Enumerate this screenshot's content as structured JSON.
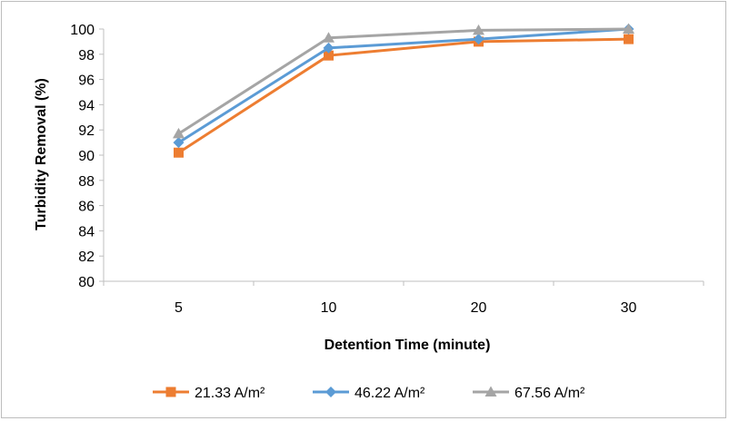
{
  "chart_data": {
    "type": "line",
    "categories": [
      "5",
      "10",
      "20",
      "30"
    ],
    "series": [
      {
        "name": "21.33 A/m²",
        "values": [
          90.2,
          97.9,
          99.0,
          99.2
        ],
        "color": "#ED7D31",
        "marker": "square"
      },
      {
        "name": "46.22 A/m²",
        "values": [
          91.0,
          98.5,
          99.2,
          100.0
        ],
        "color": "#5B9BD5",
        "marker": "diamond"
      },
      {
        "name": "67.56 A/m²",
        "values": [
          91.7,
          99.3,
          99.9,
          100.0
        ],
        "color": "#A5A5A5",
        "marker": "triangle"
      }
    ],
    "title": "",
    "xlabel": "Detention Time (minute)",
    "ylabel": "Turbidity Removal  (%)",
    "ylim": [
      80,
      100
    ],
    "yticks": [
      "80",
      "82",
      "84",
      "86",
      "88",
      "90",
      "92",
      "94",
      "96",
      "98",
      "100"
    ],
    "grid": false,
    "legend": "bottom"
  }
}
